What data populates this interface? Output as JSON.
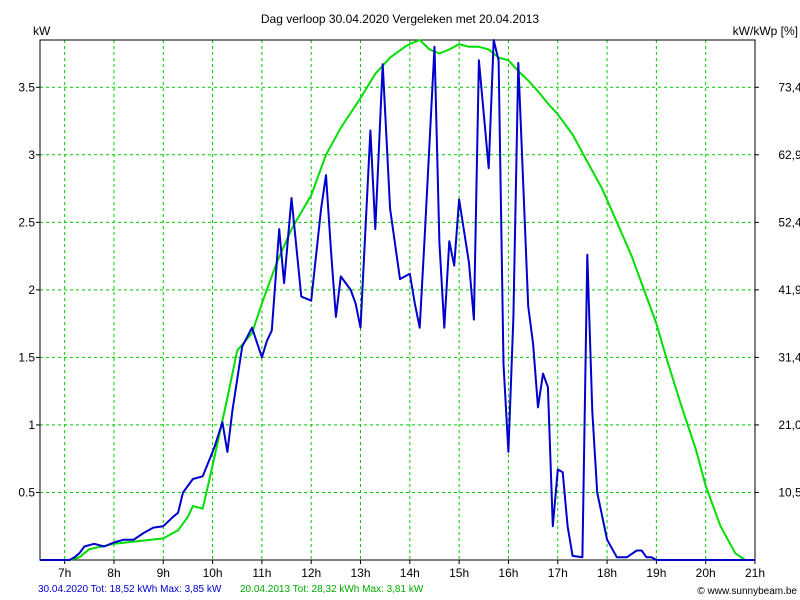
{
  "chart_data": {
    "type": "line",
    "title": "Dag  verloop 30.04.2020   Vergeleken met 20.04.2013",
    "ylabel_left": "kW",
    "ylabel_right": "kW/kWp [%]",
    "x_range_hours": [
      6.5,
      21.0
    ],
    "y_range_kw": [
      0,
      3.85
    ],
    "x_tick_labels": [
      "7h",
      "8h",
      "9h",
      "10h",
      "11h",
      "12h",
      "13h",
      "14h",
      "15h",
      "16h",
      "17h",
      "18h",
      "19h",
      "20h",
      "21h"
    ],
    "x_tick_hours": [
      7,
      8,
      9,
      10,
      11,
      12,
      13,
      14,
      15,
      16,
      17,
      18,
      19,
      20,
      21
    ],
    "y_left_ticks": [
      0.5,
      1,
      1.5,
      2,
      2.5,
      3,
      3.5
    ],
    "y_left_tick_labels": [
      "0.5",
      "1",
      "1.5",
      "2",
      "2.5",
      "3",
      "3.5"
    ],
    "y_right_tick_labels": [
      "10,5",
      "21,0",
      "31,4",
      "41,9",
      "52,4",
      "62,9",
      "73,4"
    ],
    "grid": true,
    "series": [
      {
        "name": "30.04.2020",
        "color": "#0000cc",
        "x": [
          6.5,
          7.1,
          7.2,
          7.3,
          7.4,
          7.6,
          7.8,
          8.0,
          8.2,
          8.4,
          8.6,
          8.8,
          9.0,
          9.2,
          9.3,
          9.4,
          9.6,
          9.8,
          10.0,
          10.05,
          10.2,
          10.3,
          10.4,
          10.6,
          10.8,
          11.0,
          11.1,
          11.2,
          11.35,
          11.45,
          11.6,
          11.8,
          12.0,
          12.2,
          12.3,
          12.4,
          12.5,
          12.6,
          12.8,
          12.9,
          13.0,
          13.2,
          13.3,
          13.45,
          13.6,
          13.8,
          14.0,
          14.1,
          14.2,
          14.3,
          14.5,
          14.6,
          14.7,
          14.8,
          14.9,
          15.0,
          15.2,
          15.3,
          15.4,
          15.5,
          15.6,
          15.7,
          15.8,
          15.9,
          16.0,
          16.1,
          16.2,
          16.4,
          16.5,
          16.6,
          16.7,
          16.8,
          16.9,
          17.0,
          17.1,
          17.2,
          17.3,
          17.5,
          17.6,
          17.7,
          17.8,
          18.0,
          18.2,
          18.4,
          18.6,
          18.7,
          18.8,
          18.9,
          19.0,
          19.2,
          19.4,
          19.6,
          19.8,
          19.9,
          20.0,
          20.2,
          20.4,
          21.0
        ],
        "y": [
          0,
          0,
          0.02,
          0.05,
          0.1,
          0.12,
          0.1,
          0.13,
          0.15,
          0.15,
          0.2,
          0.24,
          0.25,
          0.32,
          0.35,
          0.5,
          0.6,
          0.62,
          0.8,
          0.85,
          1.02,
          0.8,
          1.1,
          1.58,
          1.72,
          1.5,
          1.62,
          1.7,
          2.45,
          2.05,
          2.68,
          1.95,
          1.92,
          2.6,
          2.85,
          2.3,
          1.8,
          2.1,
          2.0,
          1.9,
          1.72,
          3.18,
          2.45,
          3.67,
          2.6,
          2.08,
          2.12,
          1.9,
          1.72,
          2.38,
          3.8,
          2.35,
          1.72,
          2.36,
          2.18,
          2.67,
          2.2,
          1.78,
          3.7,
          3.3,
          2.9,
          3.85,
          3.7,
          1.45,
          0.8,
          1.8,
          3.68,
          1.88,
          1.6,
          1.13,
          1.38,
          1.28,
          0.25,
          0.67,
          0.65,
          0.25,
          0.03,
          0.02,
          2.26,
          1.1,
          0.5,
          0.15,
          0.02,
          0.02,
          0.07,
          0.07,
          0.02,
          0.02,
          0,
          0,
          0,
          0,
          0,
          0,
          0,
          0,
          0,
          0
        ]
      },
      {
        "name": "20.04.2013",
        "color": "#00dd00",
        "x": [
          6.5,
          7.1,
          7.3,
          7.5,
          8.0,
          8.5,
          9.0,
          9.3,
          9.5,
          9.6,
          9.8,
          10.0,
          10.3,
          10.5,
          10.8,
          11.0,
          11.3,
          11.6,
          12.0,
          12.3,
          12.6,
          13.0,
          13.3,
          13.6,
          13.9,
          14.0,
          14.2,
          14.4,
          14.6,
          14.8,
          15.0,
          15.2,
          15.4,
          15.6,
          15.8,
          16.0,
          16.2,
          16.4,
          16.6,
          16.8,
          17.0,
          17.3,
          17.6,
          17.9,
          18.2,
          18.5,
          18.8,
          19.0,
          19.2,
          19.5,
          19.8,
          20.0,
          20.3,
          20.6,
          20.8,
          21.0
        ],
        "y": [
          0,
          0,
          0.02,
          0.08,
          0.12,
          0.14,
          0.16,
          0.22,
          0.32,
          0.4,
          0.38,
          0.7,
          1.2,
          1.55,
          1.68,
          1.9,
          2.2,
          2.45,
          2.7,
          3.0,
          3.2,
          3.42,
          3.6,
          3.72,
          3.8,
          3.82,
          3.85,
          3.78,
          3.75,
          3.78,
          3.82,
          3.8,
          3.8,
          3.78,
          3.72,
          3.7,
          3.62,
          3.55,
          3.47,
          3.38,
          3.3,
          3.15,
          2.95,
          2.75,
          2.5,
          2.25,
          1.95,
          1.75,
          1.5,
          1.15,
          0.82,
          0.55,
          0.25,
          0.05,
          0,
          0
        ]
      }
    ]
  },
  "footer": {
    "left_series_label": "30.04.2020 Tot: 18,52 kWh Max: 3,85 kW",
    "right_series_label": "20.04.2013 Tot: 28,32 kWh Max: 3,81 kW",
    "credit": "© www.sunnybeam.be",
    "left_color": "#0000cc",
    "right_color": "#00aa00"
  }
}
